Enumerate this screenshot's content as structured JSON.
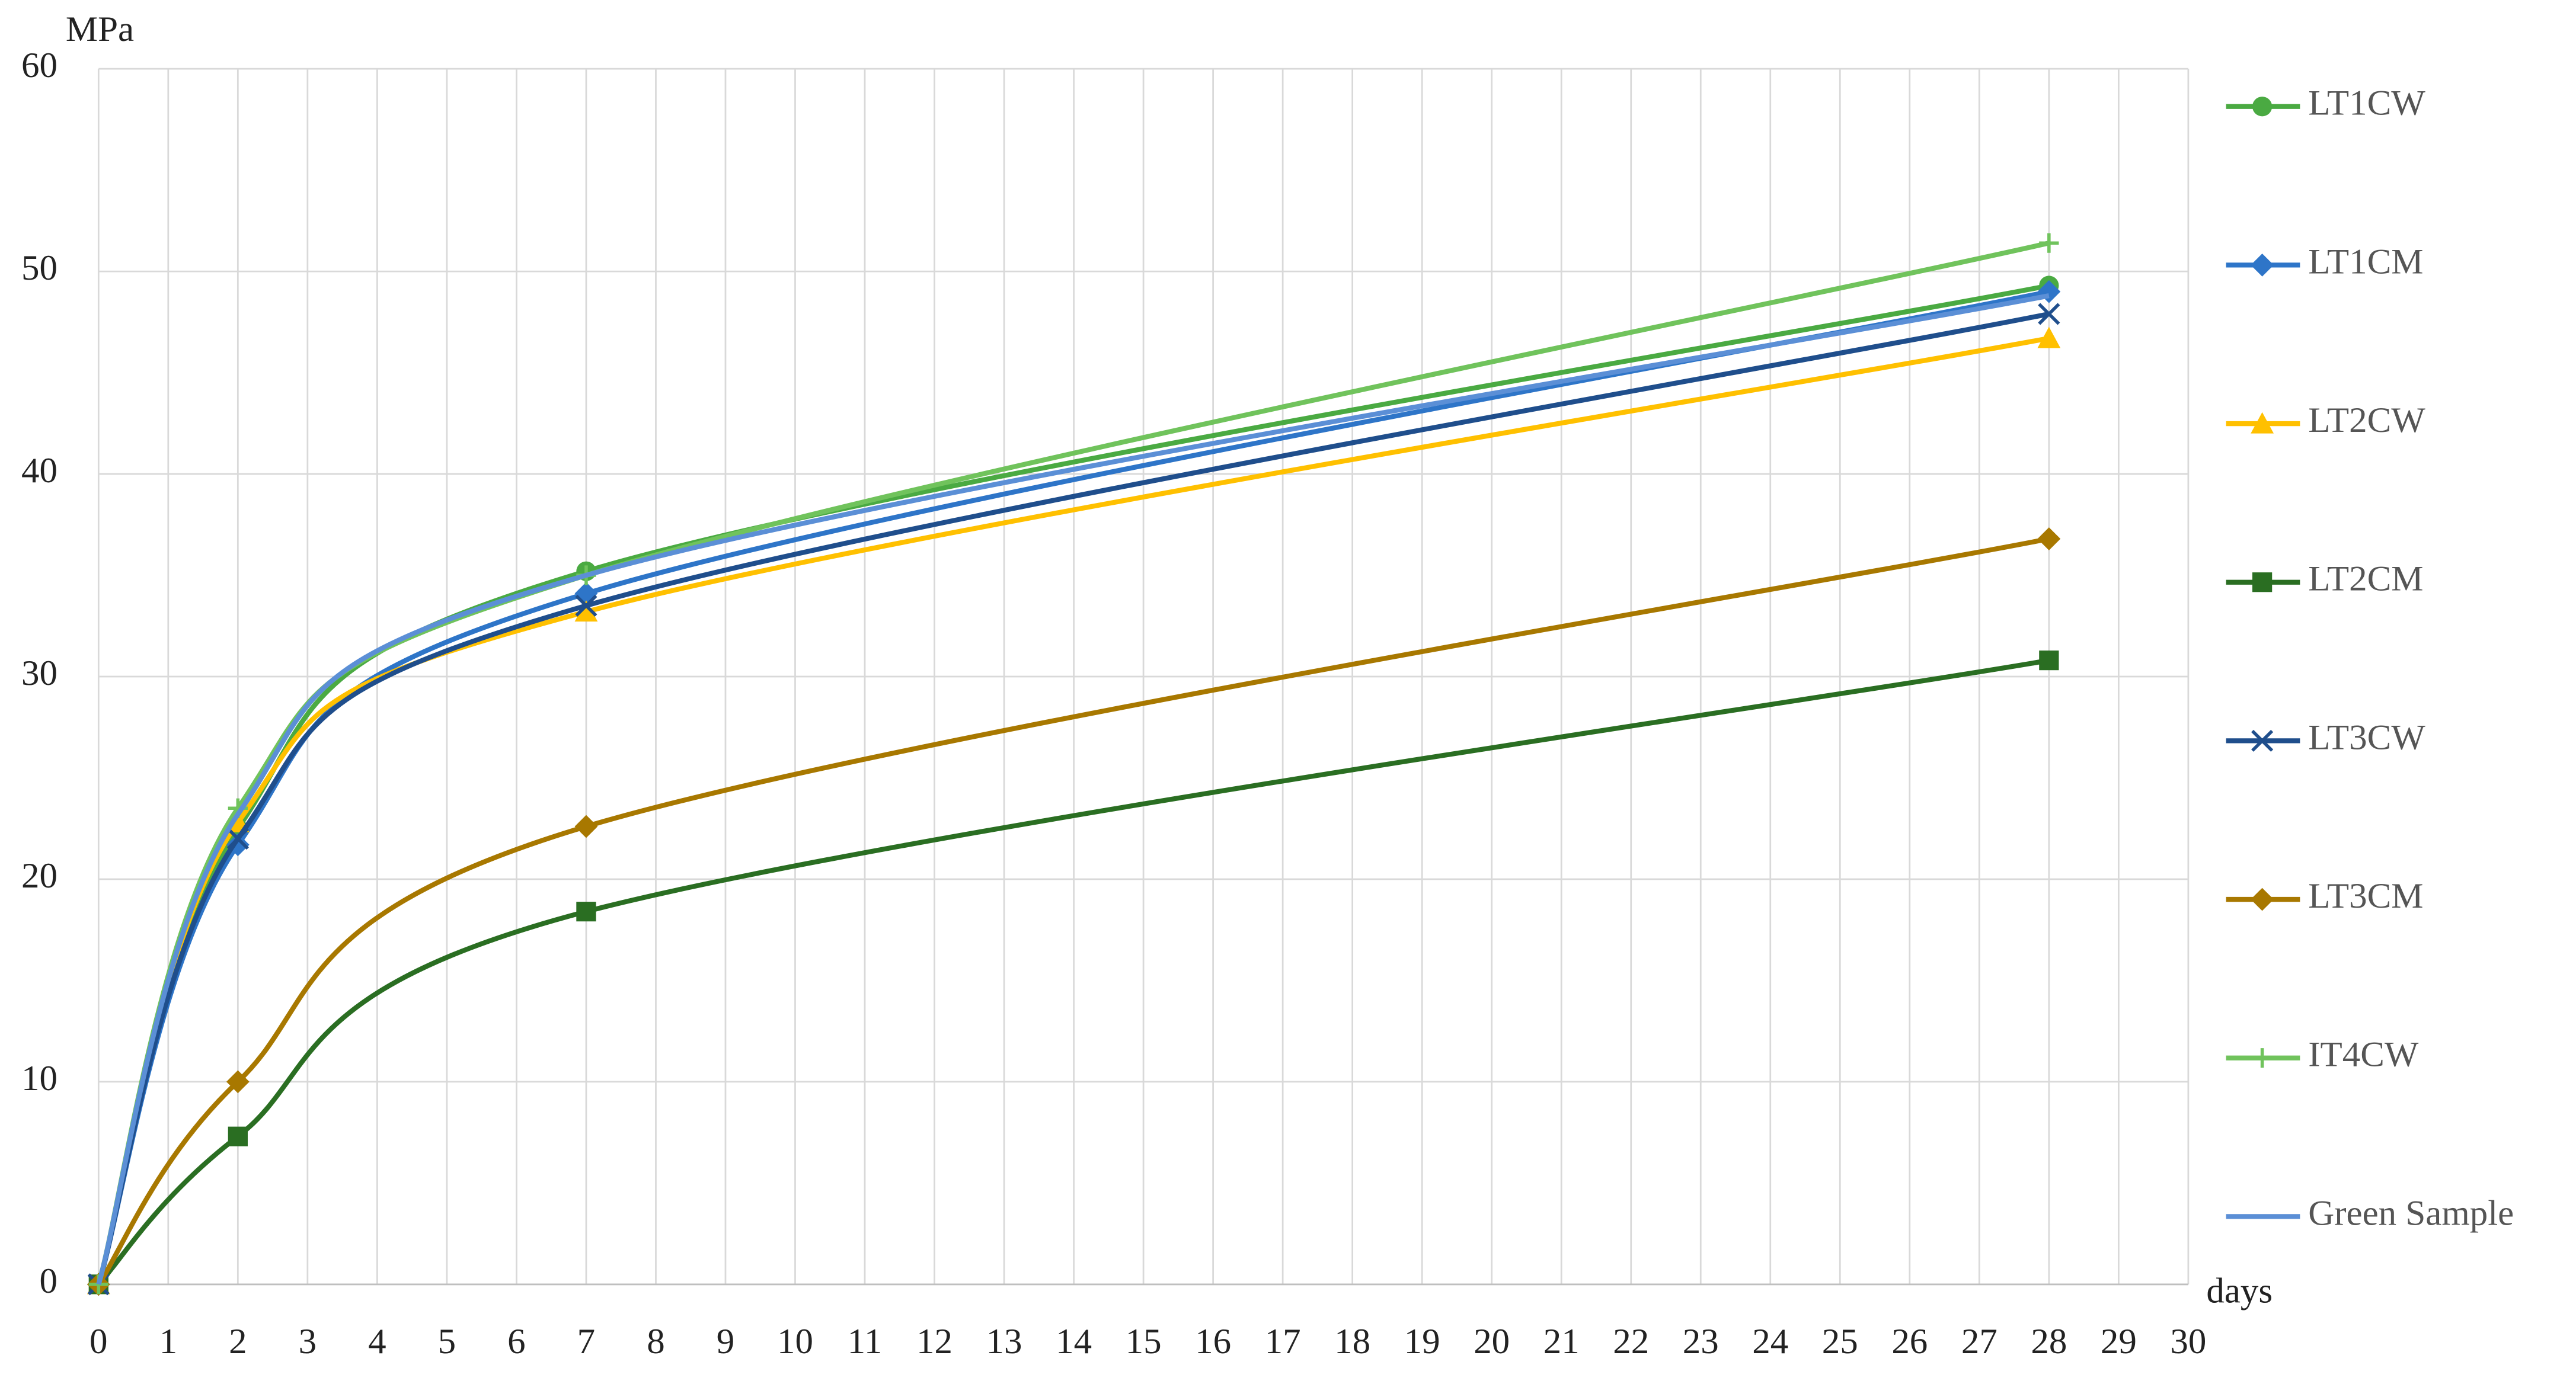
{
  "chart_data": {
    "type": "line",
    "y_label": "MPa",
    "x_label": "days",
    "x": [
      0,
      2,
      7,
      28
    ],
    "xlim": [
      0,
      30
    ],
    "xticks": [
      0,
      1,
      2,
      3,
      4,
      5,
      6,
      7,
      8,
      9,
      10,
      11,
      12,
      13,
      14,
      15,
      16,
      17,
      18,
      19,
      20,
      21,
      22,
      23,
      24,
      25,
      26,
      27,
      28,
      29,
      30
    ],
    "ylim": [
      0,
      60
    ],
    "yticks": [
      0,
      10,
      20,
      30,
      40,
      50,
      60
    ],
    "grid": true,
    "smooth": true,
    "legend": "right",
    "series": [
      {
        "name": "LT1CW",
        "color": "#4aaa42",
        "marker": "circle",
        "values": [
          0,
          22.5,
          35.2,
          49.3
        ]
      },
      {
        "name": "LT1CM",
        "color": "#2e75c8",
        "marker": "diamond",
        "values": [
          0,
          21.7,
          34.1,
          49.0
        ]
      },
      {
        "name": "LT2CW",
        "color": "#ffc000",
        "marker": "triangle",
        "values": [
          0,
          22.8,
          33.2,
          46.7
        ]
      },
      {
        "name": "LT2CM",
        "color": "#2a6e22",
        "marker": "square",
        "values": [
          0,
          7.3,
          18.4,
          30.8
        ]
      },
      {
        "name": "LT3CW",
        "color": "#1f4e8c",
        "marker": "x",
        "values": [
          0,
          22.0,
          33.5,
          47.9
        ]
      },
      {
        "name": "LT3CM",
        "color": "#a87800",
        "marker": "diamond",
        "values": [
          0,
          10.0,
          22.6,
          36.8
        ]
      },
      {
        "name": "IT4CW",
        "color": "#70c35c",
        "marker": "plus",
        "values": [
          0,
          23.5,
          35.0,
          51.4
        ]
      },
      {
        "name": "Green Sample",
        "color": "#5b8fd6",
        "values": [
          0,
          23.2,
          35.0,
          48.8
        ]
      }
    ]
  }
}
